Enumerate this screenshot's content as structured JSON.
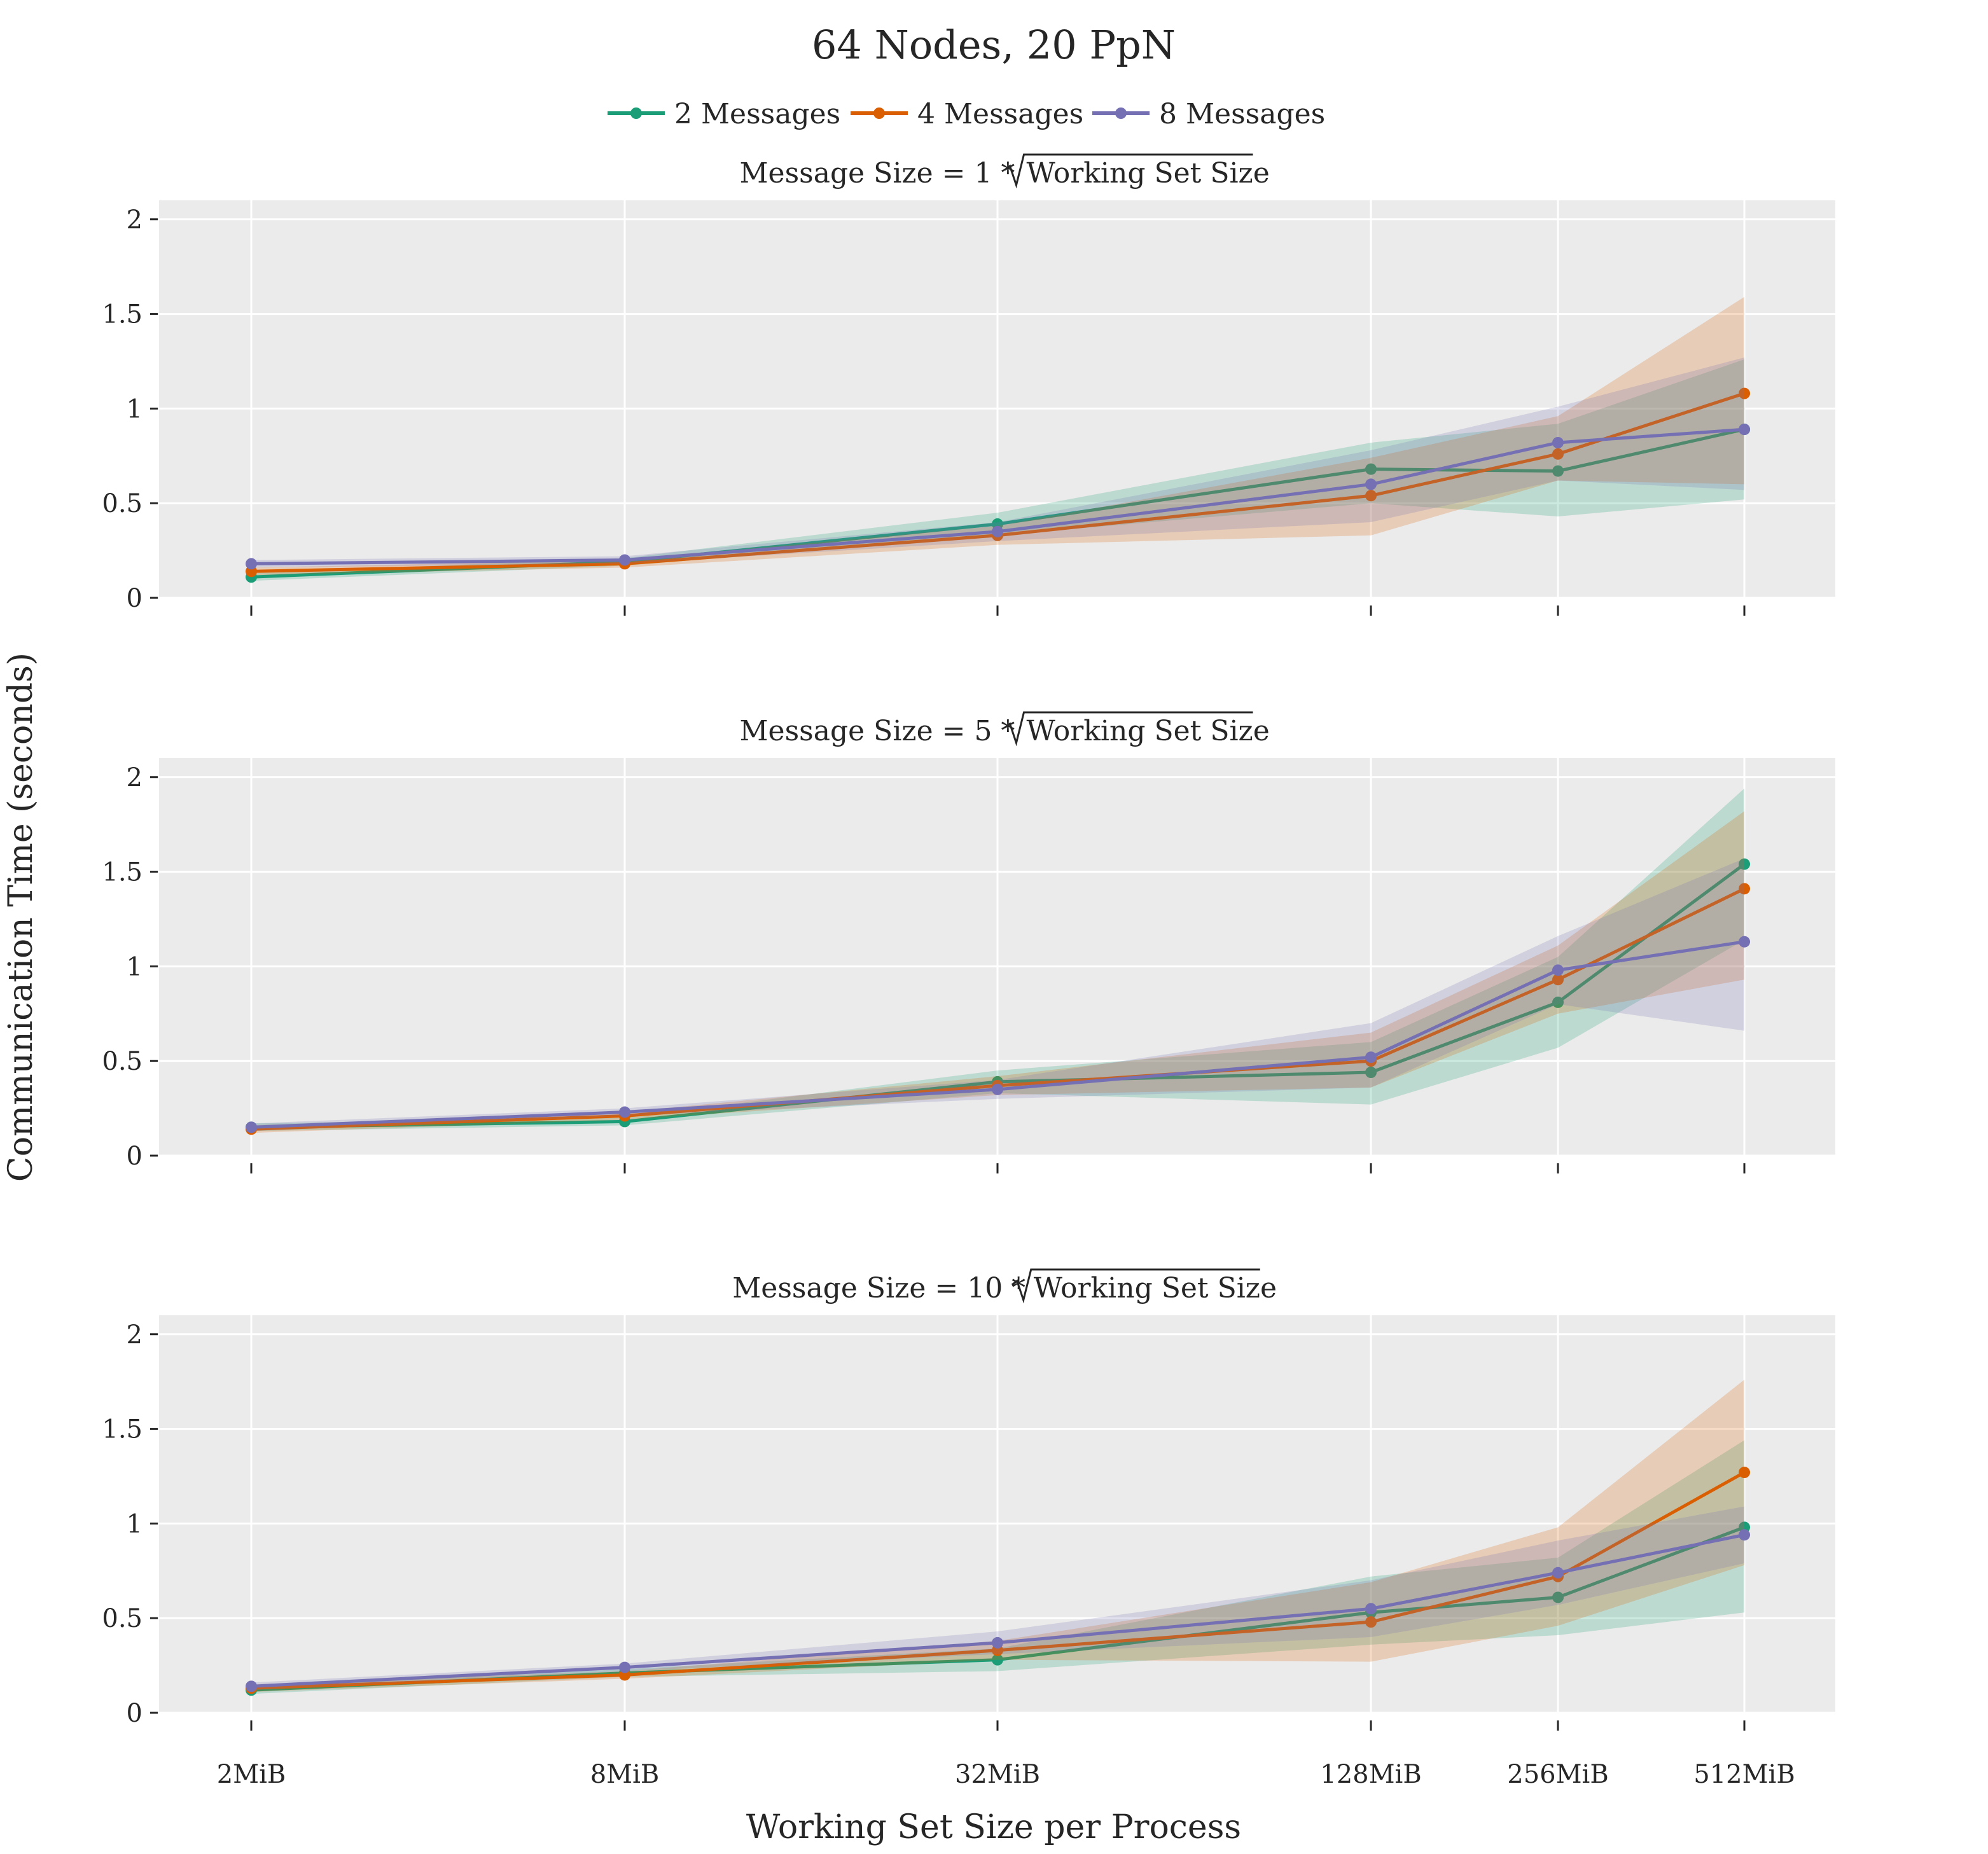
{
  "figure": {
    "title": "64 Nodes, 20 PpN",
    "xlabel": "Working Set Size per Process",
    "ylabel": "Communication Time  (seconds)"
  },
  "legend": [
    {
      "label": "2 Messages",
      "color": "#1b9e77"
    },
    {
      "label": "4 Messages",
      "color": "#d95f02"
    },
    {
      "label": "8 Messages",
      "color": "#7570b3"
    }
  ],
  "chart_data": [
    {
      "type": "line",
      "title_prefix": "Message Size = 1 *",
      "title_radicand": "Working Set Size",
      "x": [
        "2MiB",
        "8MiB",
        "32MiB",
        "128MiB",
        "256MiB",
        "512MiB"
      ],
      "ylim": [
        0,
        2.1
      ],
      "yticks": [
        "0",
        "0.5",
        "1",
        "1.5",
        "2"
      ],
      "grid": true,
      "series": [
        {
          "name": "2 Messages",
          "color": "#1b9e77",
          "values": [
            0.11,
            0.19,
            0.39,
            0.68,
            0.67,
            0.89
          ],
          "lower": [
            0.09,
            0.17,
            0.33,
            0.5,
            0.43,
            0.52
          ],
          "upper": [
            0.13,
            0.21,
            0.45,
            0.82,
            0.92,
            1.26
          ]
        },
        {
          "name": "4 Messages",
          "color": "#d95f02",
          "values": [
            0.14,
            0.18,
            0.33,
            0.54,
            0.76,
            1.08
          ],
          "lower": [
            0.12,
            0.16,
            0.28,
            0.33,
            0.62,
            0.6
          ],
          "upper": [
            0.16,
            0.2,
            0.38,
            0.74,
            0.96,
            1.59
          ]
        },
        {
          "name": "8 Messages",
          "color": "#7570b3",
          "values": [
            0.18,
            0.2,
            0.35,
            0.6,
            0.82,
            0.89
          ],
          "lower": [
            0.16,
            0.18,
            0.3,
            0.4,
            0.62,
            0.57
          ],
          "upper": [
            0.2,
            0.22,
            0.4,
            0.78,
            1.01,
            1.27
          ]
        }
      ]
    },
    {
      "type": "line",
      "title_prefix": "Message Size = 5 *",
      "title_radicand": "Working Set Size",
      "x": [
        "2MiB",
        "8MiB",
        "32MiB",
        "128MiB",
        "256MiB",
        "512MiB"
      ],
      "ylim": [
        0,
        2.1
      ],
      "yticks": [
        "0",
        "0.5",
        "1",
        "1.5",
        "2"
      ],
      "grid": true,
      "series": [
        {
          "name": "2 Messages",
          "color": "#1b9e77",
          "values": [
            0.15,
            0.18,
            0.39,
            0.44,
            0.81,
            1.54
          ],
          "lower": [
            0.13,
            0.16,
            0.33,
            0.27,
            0.57,
            1.14
          ],
          "upper": [
            0.17,
            0.2,
            0.45,
            0.6,
            1.05,
            1.94
          ]
        },
        {
          "name": "4 Messages",
          "color": "#d95f02",
          "values": [
            0.14,
            0.21,
            0.37,
            0.5,
            0.93,
            1.41
          ],
          "lower": [
            0.12,
            0.19,
            0.32,
            0.36,
            0.75,
            0.93
          ],
          "upper": [
            0.16,
            0.23,
            0.42,
            0.65,
            1.11,
            1.82
          ]
        },
        {
          "name": "8 Messages",
          "color": "#7570b3",
          "values": [
            0.15,
            0.23,
            0.35,
            0.52,
            0.98,
            1.13
          ],
          "lower": [
            0.13,
            0.21,
            0.3,
            0.36,
            0.8,
            0.66
          ],
          "upper": [
            0.17,
            0.25,
            0.4,
            0.7,
            1.16,
            1.57
          ]
        }
      ]
    },
    {
      "type": "line",
      "title_prefix": "Message Size = 10 *",
      "title_radicand": "Working Set Size",
      "x": [
        "2MiB",
        "8MiB",
        "32MiB",
        "128MiB",
        "256MiB",
        "512MiB"
      ],
      "ylim": [
        0,
        2.1
      ],
      "yticks": [
        "0",
        "0.5",
        "1",
        "1.5",
        "2"
      ],
      "grid": true,
      "series": [
        {
          "name": "2 Messages",
          "color": "#1b9e77",
          "values": [
            0.12,
            0.21,
            0.28,
            0.53,
            0.61,
            0.98
          ],
          "lower": [
            0.1,
            0.19,
            0.22,
            0.36,
            0.41,
            0.53
          ],
          "upper": [
            0.14,
            0.23,
            0.34,
            0.72,
            0.82,
            1.44
          ]
        },
        {
          "name": "4 Messages",
          "color": "#d95f02",
          "values": [
            0.13,
            0.2,
            0.33,
            0.48,
            0.72,
            1.27
          ],
          "lower": [
            0.11,
            0.18,
            0.28,
            0.27,
            0.46,
            0.78
          ],
          "upper": [
            0.15,
            0.22,
            0.38,
            0.69,
            0.98,
            1.76
          ]
        },
        {
          "name": "8 Messages",
          "color": "#7570b3",
          "values": [
            0.14,
            0.24,
            0.37,
            0.55,
            0.74,
            0.94
          ],
          "lower": [
            0.12,
            0.22,
            0.31,
            0.4,
            0.57,
            0.79
          ],
          "upper": [
            0.16,
            0.26,
            0.43,
            0.7,
            0.91,
            1.09
          ]
        }
      ]
    }
  ]
}
